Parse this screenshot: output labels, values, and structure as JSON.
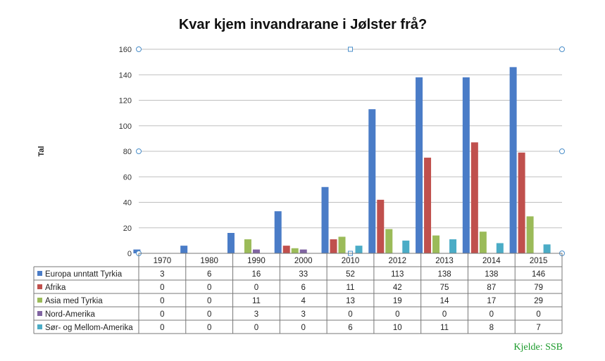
{
  "chart_data": {
    "type": "bar",
    "title": "Kvar kjem invandrarane i Jølster frå?",
    "ylabel": "Tal",
    "ylim": [
      0,
      160
    ],
    "yticks": [
      0,
      20,
      40,
      60,
      80,
      100,
      120,
      140,
      160
    ],
    "grid": true,
    "legend_placement": "data-table-left",
    "categories": [
      "1970",
      "1980",
      "1990",
      "2000",
      "2010",
      "2012",
      "2013",
      "2014",
      "2015"
    ],
    "series": [
      {
        "name": "Europa unntatt Tyrkia",
        "color": "#4a7cc7",
        "values": [
          3,
          6,
          16,
          33,
          52,
          113,
          138,
          138,
          146
        ]
      },
      {
        "name": "Afrika",
        "color": "#c0504d",
        "values": [
          0,
          0,
          0,
          6,
          11,
          42,
          75,
          87,
          79
        ]
      },
      {
        "name": "Asia med Tyrkia",
        "color": "#9bbb59",
        "values": [
          0,
          0,
          11,
          4,
          13,
          19,
          14,
          17,
          29
        ]
      },
      {
        "name": "Nord-Amerika",
        "color": "#8064a2",
        "values": [
          0,
          0,
          3,
          3,
          0,
          0,
          0,
          0,
          0
        ]
      },
      {
        "name": "Sør- og Mellom-Amerika",
        "color": "#4bacc6",
        "values": [
          0,
          0,
          0,
          0,
          6,
          10,
          11,
          8,
          7
        ]
      }
    ],
    "source": "Kjelde: SSB"
  }
}
